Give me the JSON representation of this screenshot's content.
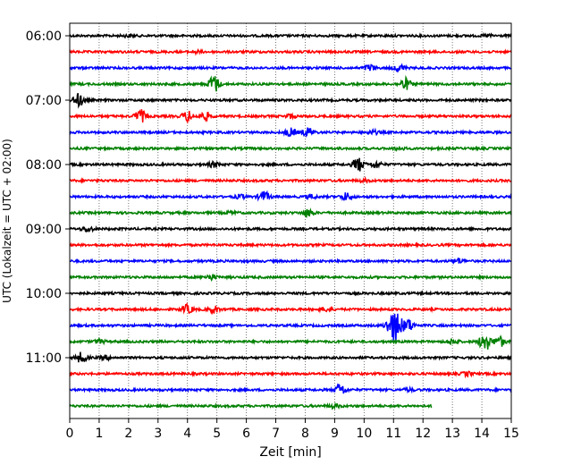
{
  "chart_data": {
    "type": "line",
    "title": "",
    "xlabel": "Zeit  [min]",
    "ylabel": "UTC (Lokalzeit = UTC + 02:00)",
    "xlim": [
      0,
      15
    ],
    "x_ticks": [
      "0",
      "1",
      "2",
      "3",
      "4",
      "5",
      "6",
      "7",
      "8",
      "9",
      "10",
      "11",
      "12",
      "13",
      "14",
      "15"
    ],
    "y_ticks": [
      "06:00",
      "07:00",
      "08:00",
      "09:00",
      "10:00",
      "11:00"
    ],
    "grid": "vertical dotted lines at each minute",
    "trace_interval_min": 15,
    "trace_colors": [
      "#000000",
      "#ff0000",
      "#0000ff",
      "#008000"
    ],
    "traces": [
      {
        "start": "06:00",
        "color": "#000000",
        "end_min": 15,
        "events": [
          {
            "t": 2.0,
            "amp": 0.15
          },
          {
            "t": 14.2,
            "amp": 0.2
          }
        ]
      },
      {
        "start": "06:15",
        "color": "#ff0000",
        "end_min": 15,
        "events": [
          {
            "t": 4.3,
            "amp": 0.2
          }
        ]
      },
      {
        "start": "06:30",
        "color": "#0000ff",
        "end_min": 15,
        "events": [
          {
            "t": 10.2,
            "amp": 0.5
          },
          {
            "t": 11.2,
            "amp": 0.55
          }
        ]
      },
      {
        "start": "06:45",
        "color": "#008000",
        "end_min": 15,
        "events": [
          {
            "t": 4.9,
            "amp": 1.4
          },
          {
            "t": 11.4,
            "amp": 0.9
          }
        ]
      },
      {
        "start": "07:00",
        "color": "#000000",
        "end_min": 15,
        "events": [
          {
            "t": 0.3,
            "amp": 1.0
          }
        ]
      },
      {
        "start": "07:15",
        "color": "#ff0000",
        "end_min": 15,
        "events": [
          {
            "t": 2.4,
            "amp": 1.0
          },
          {
            "t": 4.0,
            "amp": 0.8
          },
          {
            "t": 4.6,
            "amp": 0.6
          },
          {
            "t": 7.5,
            "amp": 0.3
          }
        ]
      },
      {
        "start": "07:30",
        "color": "#0000ff",
        "end_min": 15,
        "events": [
          {
            "t": 7.5,
            "amp": 0.6
          },
          {
            "t": 8.1,
            "amp": 0.7
          },
          {
            "t": 10.3,
            "amp": 0.3
          }
        ]
      },
      {
        "start": "07:45",
        "color": "#008000",
        "end_min": 15,
        "events": [
          {
            "t": 11.2,
            "amp": 0.2
          }
        ]
      },
      {
        "start": "08:00",
        "color": "#000000",
        "end_min": 15,
        "events": [
          {
            "t": 4.9,
            "amp": 0.4
          },
          {
            "t": 9.8,
            "amp": 1.1
          },
          {
            "t": 10.4,
            "amp": 0.5
          }
        ]
      },
      {
        "start": "08:15",
        "color": "#ff0000",
        "end_min": 15,
        "events": [
          {
            "t": 10.0,
            "amp": 0.2
          }
        ]
      },
      {
        "start": "08:30",
        "color": "#0000ff",
        "end_min": 15,
        "events": [
          {
            "t": 5.8,
            "amp": 0.3
          },
          {
            "t": 6.6,
            "amp": 0.8
          },
          {
            "t": 8.2,
            "amp": 0.3
          },
          {
            "t": 9.4,
            "amp": 0.6
          }
        ]
      },
      {
        "start": "08:45",
        "color": "#008000",
        "end_min": 15,
        "events": [
          {
            "t": 5.5,
            "amp": 0.2
          },
          {
            "t": 8.1,
            "amp": 0.6
          }
        ]
      },
      {
        "start": "09:00",
        "color": "#000000",
        "end_min": 15,
        "events": [
          {
            "t": 0.6,
            "amp": 0.4
          }
        ]
      },
      {
        "start": "09:15",
        "color": "#ff0000",
        "end_min": 15,
        "events": []
      },
      {
        "start": "09:30",
        "color": "#0000ff",
        "end_min": 15,
        "events": [
          {
            "t": 13.2,
            "amp": 0.4
          }
        ]
      },
      {
        "start": "09:45",
        "color": "#008000",
        "end_min": 15,
        "events": [
          {
            "t": 4.8,
            "amp": 0.4
          }
        ]
      },
      {
        "start": "10:00",
        "color": "#000000",
        "end_min": 15,
        "events": []
      },
      {
        "start": "10:15",
        "color": "#ff0000",
        "end_min": 15,
        "events": [
          {
            "t": 4.0,
            "amp": 0.7
          },
          {
            "t": 4.9,
            "amp": 0.5
          },
          {
            "t": 8.7,
            "amp": 0.3
          }
        ]
      },
      {
        "start": "10:30",
        "color": "#0000ff",
        "end_min": 15,
        "events": [
          {
            "t": 10.9,
            "amp": 1.2
          },
          {
            "t": 11.1,
            "amp": 2.2
          },
          {
            "t": 11.5,
            "amp": 1.0
          }
        ]
      },
      {
        "start": "10:45",
        "color": "#008000",
        "end_min": 15,
        "events": [
          {
            "t": 1.0,
            "amp": 0.3
          },
          {
            "t": 13.0,
            "amp": 0.4
          },
          {
            "t": 14.1,
            "amp": 1.5
          },
          {
            "t": 14.6,
            "amp": 0.8
          }
        ]
      },
      {
        "start": "11:00",
        "color": "#000000",
        "end_min": 15,
        "events": [
          {
            "t": 0.4,
            "amp": 0.8
          },
          {
            "t": 1.2,
            "amp": 0.3
          }
        ]
      },
      {
        "start": "11:15",
        "color": "#ff0000",
        "end_min": 15,
        "events": [
          {
            "t": 13.5,
            "amp": 0.3
          }
        ]
      },
      {
        "start": "11:30",
        "color": "#0000ff",
        "end_min": 15,
        "events": [
          {
            "t": 9.2,
            "amp": 0.9
          },
          {
            "t": 11.5,
            "amp": 0.2
          }
        ]
      },
      {
        "start": "11:45",
        "color": "#008000",
        "end_min": 12.3,
        "events": [
          {
            "t": 9.0,
            "amp": 0.3
          }
        ]
      }
    ]
  }
}
